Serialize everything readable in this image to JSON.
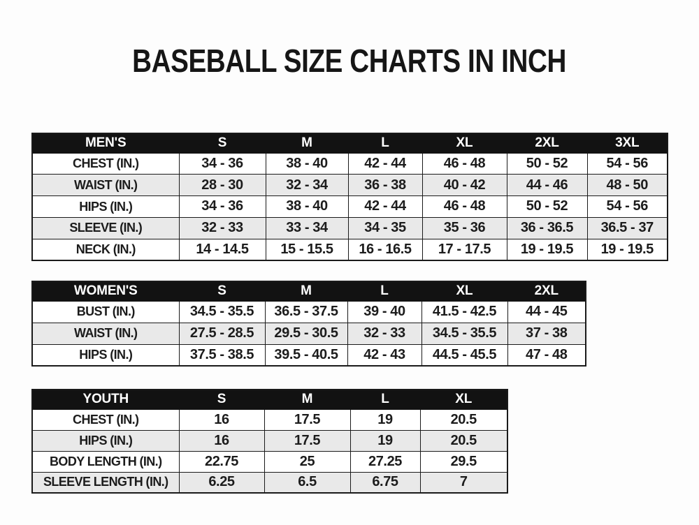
{
  "title": "BASEBALL SIZE CHARTS IN INCH",
  "colors": {
    "header_bg": "#121212",
    "header_text": "#ffffff",
    "row_stripe": "#e9e9e9",
    "text": "#1c1c1c",
    "background": "#fdfdfd"
  },
  "tables": {
    "mens": {
      "columns": [
        "MEN'S",
        "S",
        "M",
        "L",
        "XL",
        "2XL",
        "3XL"
      ],
      "rows": [
        [
          "CHEST (IN.)",
          "34 - 36",
          "38 - 40",
          "42 - 44",
          "46 - 48",
          "50 - 52",
          "54 - 56"
        ],
        [
          "WAIST (IN.)",
          "28 - 30",
          "32 - 34",
          "36 - 38",
          "40 - 42",
          "44 - 46",
          "48 - 50"
        ],
        [
          "HIPS (IN.)",
          "34 - 36",
          "38 - 40",
          "42 - 44",
          "46 - 48",
          "50 - 52",
          "54 - 56"
        ],
        [
          "SLEEVE (IN.)",
          "32 - 33",
          "33 - 34",
          "34 - 35",
          "35 - 36",
          "36 - 36.5",
          "36.5 - 37"
        ],
        [
          "NECK (IN.)",
          "14 - 14.5",
          "15 - 15.5",
          "16 - 16.5",
          "17 - 17.5",
          "19 - 19.5",
          "19 - 19.5"
        ]
      ]
    },
    "womens": {
      "columns": [
        "WOMEN'S",
        "S",
        "M",
        "L",
        "XL",
        "2XL"
      ],
      "rows": [
        [
          "BUST (IN.)",
          "34.5 - 35.5",
          "36.5 - 37.5",
          "39 - 40",
          "41.5 - 42.5",
          "44 - 45"
        ],
        [
          "WAIST (IN.)",
          "27.5 - 28.5",
          "29.5 - 30.5",
          "32 - 33",
          "34.5 - 35.5",
          "37 - 38"
        ],
        [
          "HIPS (IN.)",
          "37.5 - 38.5",
          "39.5 - 40.5",
          "42 - 43",
          "44.5 - 45.5",
          "47 - 48"
        ]
      ]
    },
    "youth": {
      "columns": [
        "YOUTH",
        "S",
        "M",
        "L",
        "XL"
      ],
      "rows": [
        [
          "CHEST (IN.)",
          "16",
          "17.5",
          "19",
          "20.5"
        ],
        [
          "HIPS (IN.)",
          "16",
          "17.5",
          "19",
          "20.5"
        ],
        [
          "BODY LENGTH (IN.)",
          "22.75",
          "25",
          "27.25",
          "29.5"
        ],
        [
          "SLEEVE LENGTH (IN.)",
          "6.25",
          "6.5",
          "6.75",
          "7"
        ]
      ]
    }
  }
}
